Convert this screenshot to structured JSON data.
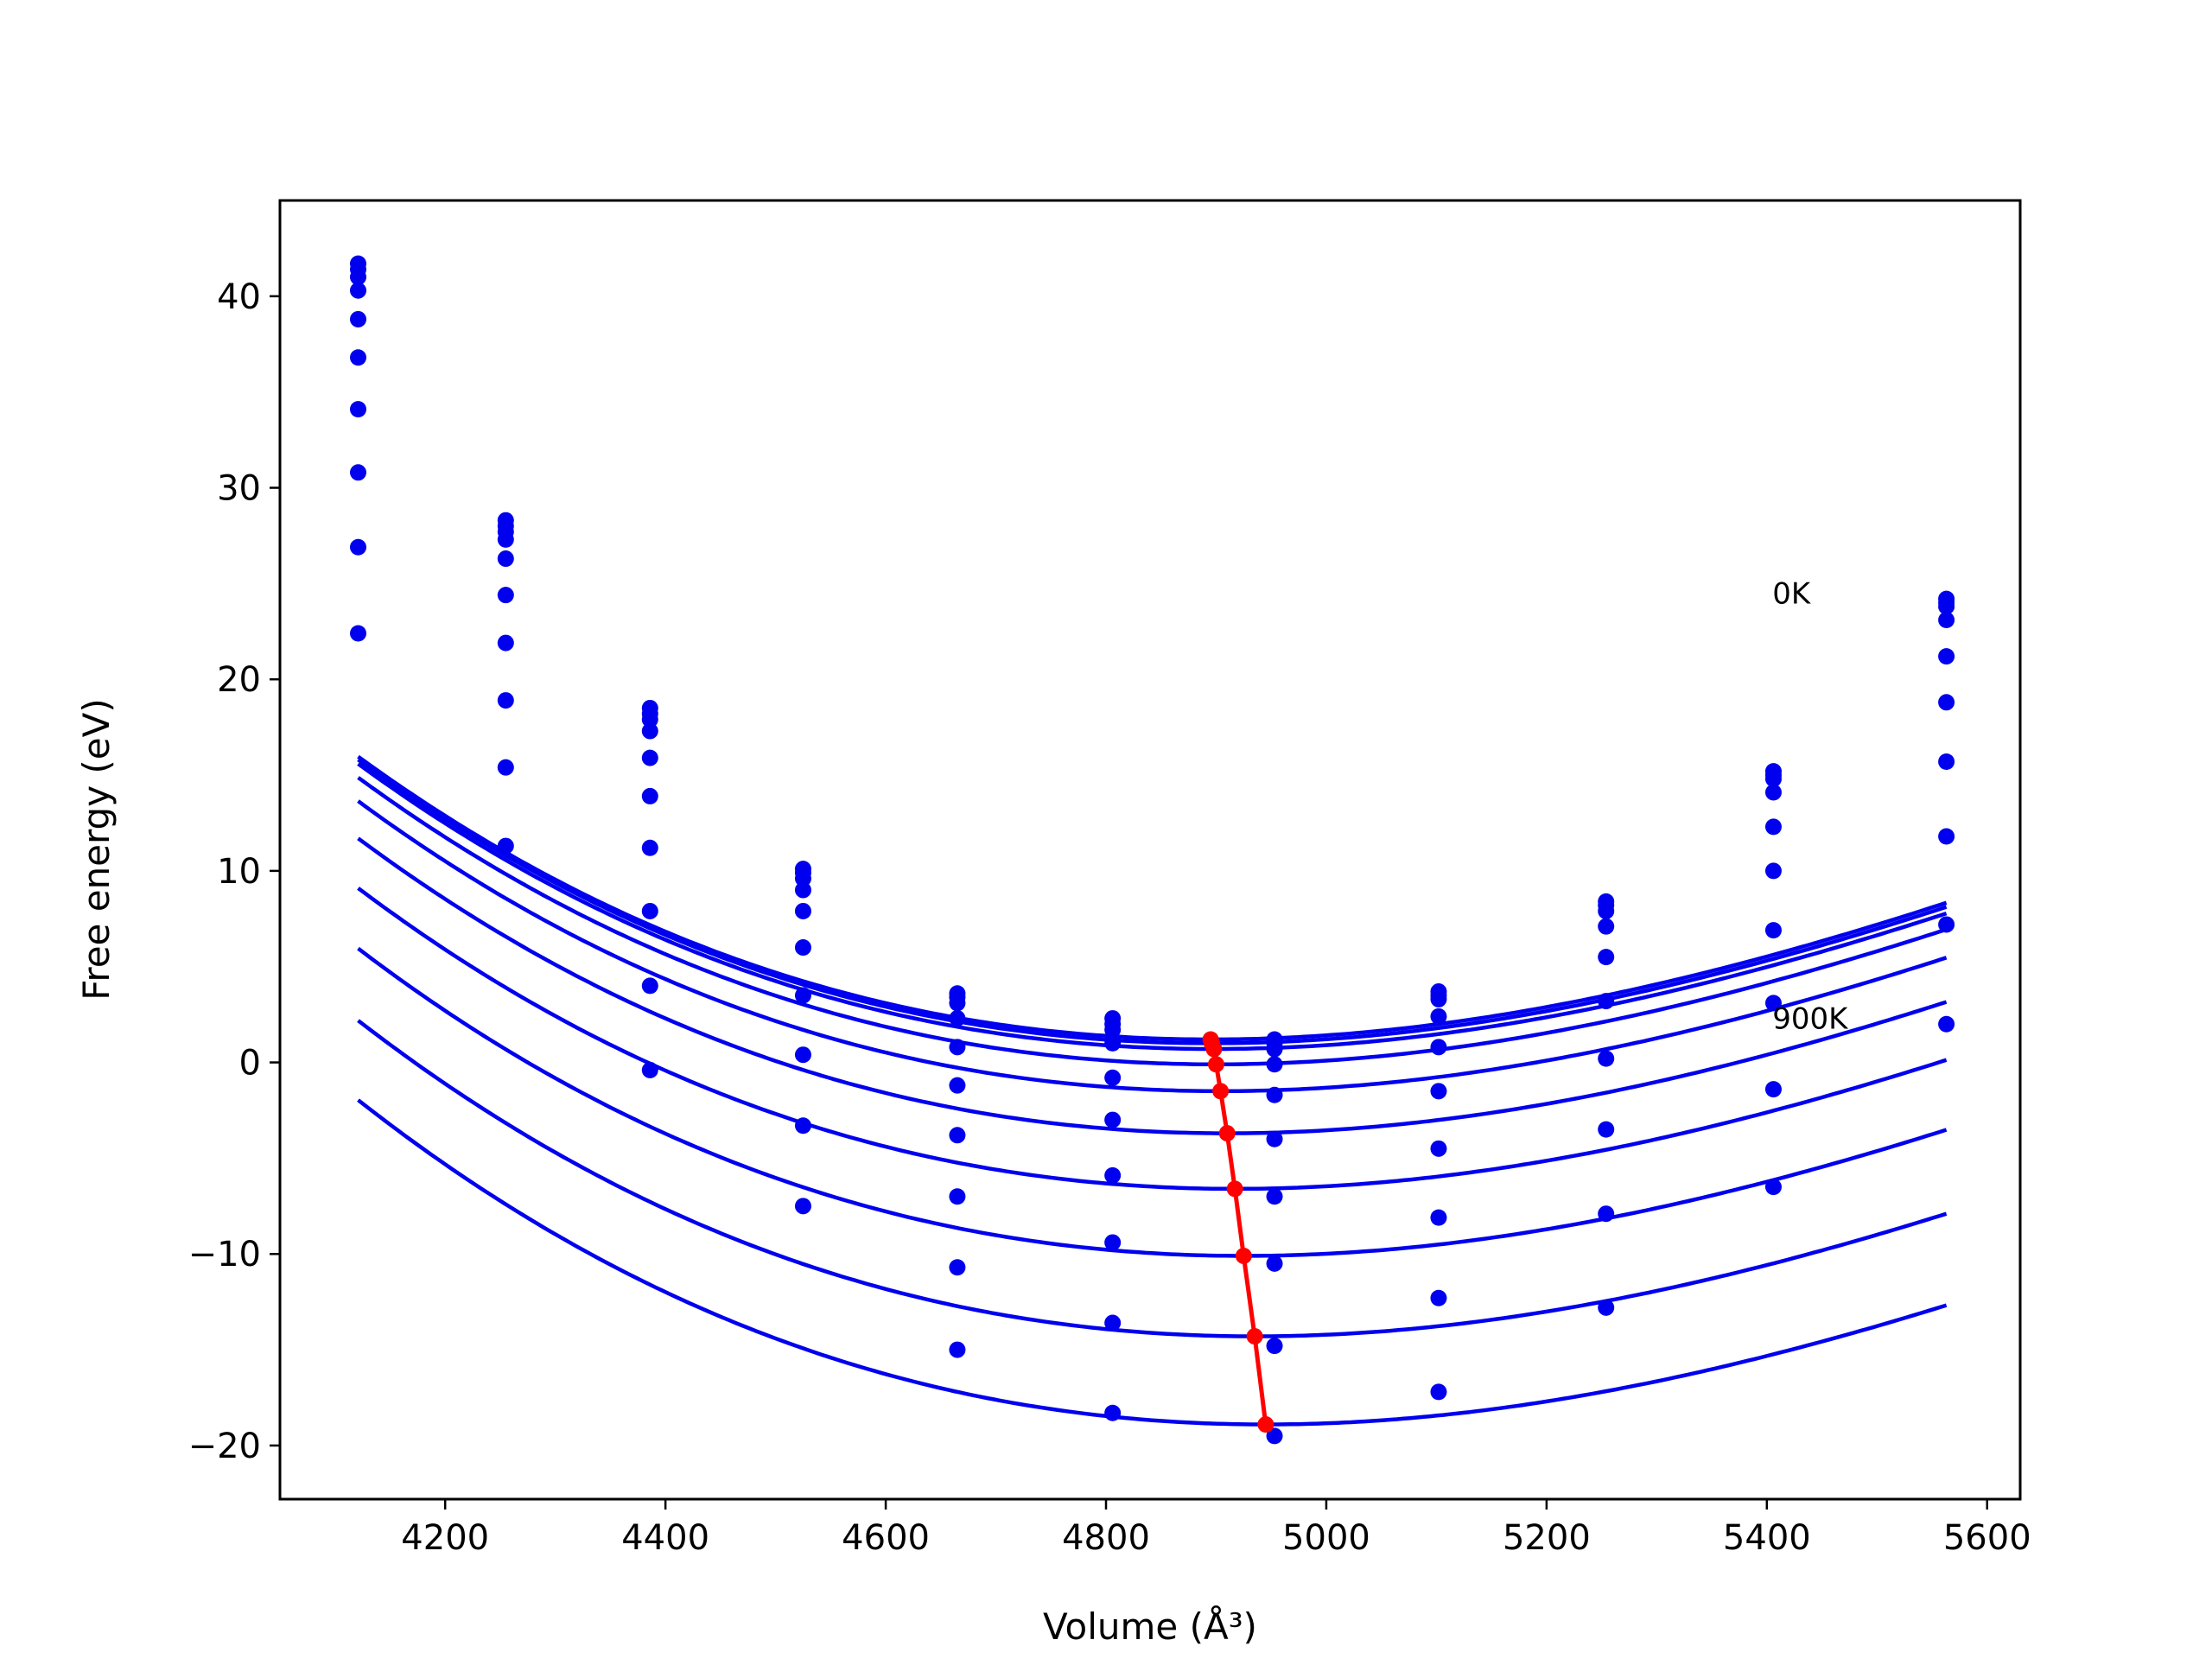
{
  "chart_data": {
    "type": "line",
    "xlabel": "Volume (Å³)",
    "ylabel": "Free energy (eV)",
    "xlim": [
      4050,
      5630
    ],
    "ylim": [
      -22.8,
      45
    ],
    "xticks": [
      4200,
      4400,
      4600,
      4800,
      5000,
      5200,
      5400,
      5600
    ],
    "yticks": [
      -20,
      -10,
      0,
      10,
      20,
      30,
      40
    ],
    "xtick_labels": [
      "4200",
      "4400",
      "4600",
      "4800",
      "5000",
      "5200",
      "5400",
      "5600"
    ],
    "ytick_labels": [
      "−20",
      "−10",
      "0",
      "10",
      "20",
      "30",
      "40"
    ],
    "grid": false,
    "legend": "none",
    "annotations": [
      {
        "text": "0K",
        "x": 5405,
        "y": 24.5
      },
      {
        "text": "900K",
        "x": 5405,
        "y": 2.3
      }
    ],
    "colors": {
      "fit_curves": "#0000ee",
      "data_points": "#0000ee",
      "minimum_path": "#ff0000",
      "frame": "#000000"
    },
    "volumes": [
      4121,
      4255,
      4386,
      4525,
      4665,
      4806,
      4953,
      5102,
      5254,
      5406,
      5563
    ],
    "series": [
      {
        "energies": [
          41.7,
          28.3,
          18.5,
          10.1,
          3.6,
          2.3,
          1.2,
          3.7,
          8.4,
          15.2,
          24.2
        ],
        "fit": {
          "v0": 4895,
          "e0": 1.2,
          "a": 2e-05,
          "b": 6e-09
        }
      },
      {
        "energies": [
          41.4,
          28.0,
          18.2,
          9.9,
          3.4,
          2.0,
          1.0,
          3.5,
          8.2,
          15.0,
          24.0
        ],
        "fit": {
          "v0": 4896,
          "e0": 1.0,
          "a": 2e-05,
          "b": 6e-09
        }
      },
      {
        "energies": [
          41.0,
          27.7,
          17.9,
          9.6,
          3.1,
          1.7,
          0.7,
          3.3,
          7.9,
          14.8,
          23.8
        ],
        "fit": {
          "v0": 4898,
          "e0": 0.7,
          "a": 2e-05,
          "b": 6e-09
        }
      },
      {
        "energies": [
          40.3,
          27.3,
          17.3,
          9.0,
          2.3,
          1.0,
          -0.1,
          2.4,
          7.1,
          14.1,
          23.1
        ],
        "fit": {
          "v0": 4900,
          "e0": -0.1,
          "a": 2e-05,
          "b": 6e-09
        }
      },
      {
        "energies": [
          38.8,
          26.3,
          15.9,
          7.9,
          0.8,
          -0.8,
          -1.7,
          0.8,
          5.5,
          12.3,
          21.2
        ],
        "fit": {
          "v0": 4904,
          "e0": -1.5,
          "a": 2e-05,
          "b": 6e-09
        }
      },
      {
        "energies": [
          36.8,
          24.4,
          13.9,
          6.0,
          -1.2,
          -3.0,
          -4.0,
          -1.5,
          3.2,
          10.0,
          18.8
        ],
        "fit": {
          "v0": 4910,
          "e0": -3.7,
          "a": 2e-05,
          "b": 6e-09
        }
      },
      {
        "energies": [
          34.1,
          21.9,
          11.2,
          3.5,
          -3.8,
          -5.9,
          -7.0,
          -4.5,
          0.2,
          6.9,
          15.7
        ],
        "fit": {
          "v0": 4917,
          "e0": -6.6,
          "a": 2e-05,
          "b": 6e-09
        }
      },
      {
        "energies": [
          30.8,
          18.9,
          7.9,
          0.4,
          -7.0,
          -9.4,
          -10.5,
          -8.1,
          -3.5,
          3.1,
          11.8
        ],
        "fit": {
          "v0": 4925,
          "e0": -10.1,
          "a": 2e-05,
          "b": 6e-09
        }
      },
      {
        "energies": [
          26.9,
          15.4,
          4.0,
          -3.3,
          -10.7,
          -13.6,
          -14.8,
          -12.3,
          -7.9,
          -1.4,
          7.2
        ],
        "fit": {
          "v0": 4935,
          "e0": -14.3,
          "a": 2e-05,
          "b": 6e-09
        }
      },
      {
        "energies": [
          22.4,
          11.3,
          -0.4,
          -7.5,
          -15.0,
          -18.3,
          -19.5,
          -17.2,
          -12.8,
          -6.5,
          2.0
        ],
        "fit": {
          "v0": 4945,
          "e0": -18.9,
          "a": 2e-05,
          "b": 6e-09
        }
      }
    ],
    "minimum_path": {
      "x": [
        4895,
        4896,
        4898,
        4900,
        4904,
        4910,
        4917,
        4925,
        4935,
        4945
      ],
      "y": [
        1.2,
        1.0,
        0.7,
        -0.1,
        -1.5,
        -3.7,
        -6.6,
        -10.1,
        -14.3,
        -18.9
      ]
    }
  }
}
